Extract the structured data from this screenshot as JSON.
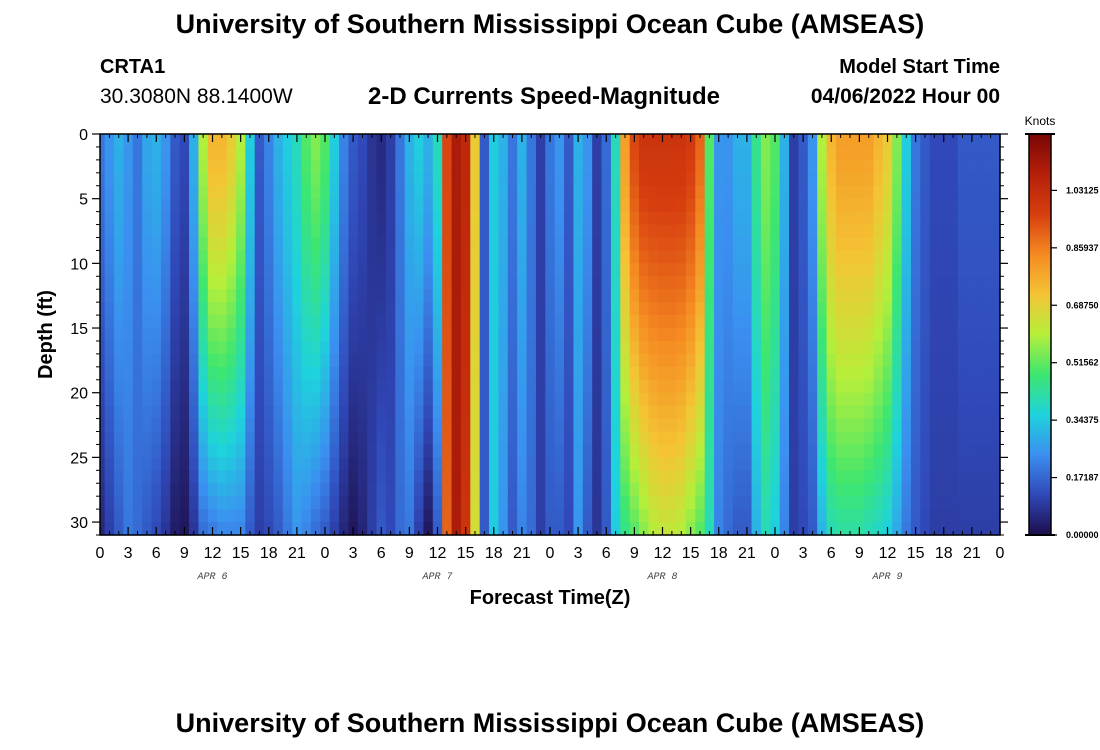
{
  "header": {
    "title": "University of Southern Mississippi Ocean Cube (AMSEAS)",
    "station": "CRTA1",
    "coords": "30.3080N  88.1400W",
    "subtitle": "2-D Currents Speed-Magnitude",
    "model_start_label": "Model Start Time",
    "model_start_value": "04/06/2022 Hour 00"
  },
  "footer": {
    "title": "University of Southern Mississippi Ocean Cube (AMSEAS)"
  },
  "chart_data": {
    "type": "heatmap",
    "title": "2-D Currents Speed-Magnitude",
    "xlabel": "Forecast Time(Z)",
    "ylabel": "Depth (ft)",
    "x_range_hours": [
      0,
      96
    ],
    "x_tick_labels": [
      "0",
      "3",
      "6",
      "9",
      "12",
      "15",
      "18",
      "21",
      "0",
      "3",
      "6",
      "9",
      "12",
      "15",
      "18",
      "21",
      "0",
      "3",
      "6",
      "9",
      "12",
      "15",
      "18",
      "21",
      "0",
      "3",
      "6",
      "9",
      "12",
      "15",
      "18",
      "21",
      "0"
    ],
    "date_labels": [
      {
        "label": "APR 6",
        "hour": 12
      },
      {
        "label": "APR 7",
        "hour": 36
      },
      {
        "label": "APR 8",
        "hour": 60
      },
      {
        "label": "APR 9",
        "hour": 84
      }
    ],
    "y_range_ft": [
      0,
      31
    ],
    "y_ticks": [
      0,
      5,
      10,
      15,
      20,
      25,
      30
    ],
    "colorbar": {
      "title": "Knots",
      "range": [
        0.0,
        1.2
      ],
      "ticks": [
        "0.00000",
        "0.17187",
        "0.34375",
        "0.51562",
        "0.68750",
        "0.85937",
        "1.03125"
      ],
      "tick_values": [
        0.0,
        0.17187,
        0.34375,
        0.51562,
        0.6875,
        0.85937,
        1.03125
      ],
      "colors": [
        "#1d0d4a",
        "#3048b8",
        "#3b8ff0",
        "#1ed3dc",
        "#3de670",
        "#b5ef3a",
        "#f4c434",
        "#f58a22",
        "#d73e0f",
        "#b5200a",
        "#7a0605"
      ]
    },
    "speed_columns_knots": [
      {
        "hour": 0,
        "surface": 0.2,
        "bottom": 0.05
      },
      {
        "hour": 1,
        "surface": 0.25,
        "bottom": 0.1
      },
      {
        "hour": 2,
        "surface": 0.3,
        "bottom": 0.15
      },
      {
        "hour": 3,
        "surface": 0.25,
        "bottom": 0.2
      },
      {
        "hour": 4,
        "surface": 0.2,
        "bottom": 0.18
      },
      {
        "hour": 5,
        "surface": 0.28,
        "bottom": 0.15
      },
      {
        "hour": 6,
        "surface": 0.3,
        "bottom": 0.12
      },
      {
        "hour": 7,
        "surface": 0.25,
        "bottom": 0.08
      },
      {
        "hour": 8,
        "surface": 0.15,
        "bottom": 0.03
      },
      {
        "hour": 9,
        "surface": 0.12,
        "bottom": 0.02
      },
      {
        "hour": 10,
        "surface": 0.3,
        "bottom": 0.08
      },
      {
        "hour": 11,
        "surface": 0.6,
        "bottom": 0.18
      },
      {
        "hour": 12,
        "surface": 0.75,
        "bottom": 0.2
      },
      {
        "hour": 13,
        "surface": 0.75,
        "bottom": 0.22
      },
      {
        "hour": 14,
        "surface": 0.7,
        "bottom": 0.22
      },
      {
        "hour": 15,
        "surface": 0.6,
        "bottom": 0.22
      },
      {
        "hour": 16,
        "surface": 0.35,
        "bottom": 0.15
      },
      {
        "hour": 17,
        "surface": 0.15,
        "bottom": 0.1
      },
      {
        "hour": 18,
        "surface": 0.22,
        "bottom": 0.12
      },
      {
        "hour": 19,
        "surface": 0.3,
        "bottom": 0.15
      },
      {
        "hour": 20,
        "surface": 0.35,
        "bottom": 0.2
      },
      {
        "hour": 21,
        "surface": 0.4,
        "bottom": 0.25
      },
      {
        "hour": 22,
        "surface": 0.5,
        "bottom": 0.22
      },
      {
        "hour": 23,
        "surface": 0.55,
        "bottom": 0.18
      },
      {
        "hour": 24,
        "surface": 0.5,
        "bottom": 0.15
      },
      {
        "hour": 25,
        "surface": 0.35,
        "bottom": 0.1
      },
      {
        "hour": 26,
        "surface": 0.22,
        "bottom": 0.05
      },
      {
        "hour": 27,
        "surface": 0.15,
        "bottom": 0.02
      },
      {
        "hour": 28,
        "surface": 0.12,
        "bottom": 0.05
      },
      {
        "hour": 29,
        "surface": 0.08,
        "bottom": 0.1
      },
      {
        "hour": 30,
        "surface": 0.06,
        "bottom": 0.15
      },
      {
        "hour": 31,
        "surface": 0.1,
        "bottom": 0.12
      },
      {
        "hour": 32,
        "surface": 0.2,
        "bottom": 0.18
      },
      {
        "hour": 33,
        "surface": 0.3,
        "bottom": 0.2
      },
      {
        "hour": 34,
        "surface": 0.35,
        "bottom": 0.1
      },
      {
        "hour": 35,
        "surface": 0.3,
        "bottom": 0.02
      },
      {
        "hour": 36,
        "surface": 0.4,
        "bottom": 0.15
      },
      {
        "hour": 37,
        "surface": 0.95,
        "bottom": 0.9
      },
      {
        "hour": 38,
        "surface": 1.1,
        "bottom": 1.1
      },
      {
        "hour": 39,
        "surface": 1.05,
        "bottom": 1.0
      },
      {
        "hour": 40,
        "surface": 0.7,
        "bottom": 0.65
      },
      {
        "hour": 41,
        "surface": 0.15,
        "bottom": 0.15
      },
      {
        "hour": 42,
        "surface": 0.35,
        "bottom": 0.35
      },
      {
        "hour": 43,
        "surface": 0.3,
        "bottom": 0.25
      },
      {
        "hour": 44,
        "surface": 0.2,
        "bottom": 0.15
      },
      {
        "hour": 45,
        "surface": 0.3,
        "bottom": 0.22
      },
      {
        "hour": 46,
        "surface": 0.2,
        "bottom": 0.18
      },
      {
        "hour": 47,
        "surface": 0.1,
        "bottom": 0.1
      },
      {
        "hour": 48,
        "surface": 0.2,
        "bottom": 0.15
      },
      {
        "hour": 49,
        "surface": 0.25,
        "bottom": 0.15
      },
      {
        "hour": 50,
        "surface": 0.15,
        "bottom": 0.12
      },
      {
        "hour": 51,
        "surface": 0.3,
        "bottom": 0.25
      },
      {
        "hour": 52,
        "surface": 0.25,
        "bottom": 0.15
      },
      {
        "hour": 53,
        "surface": 0.1,
        "bottom": 0.08
      },
      {
        "hour": 54,
        "surface": 0.18,
        "bottom": 0.15
      },
      {
        "hour": 55,
        "surface": 0.4,
        "bottom": 0.35
      },
      {
        "hour": 56,
        "surface": 0.8,
        "bottom": 0.45
      },
      {
        "hour": 57,
        "surface": 0.95,
        "bottom": 0.5
      },
      {
        "hour": 58,
        "surface": 1.0,
        "bottom": 0.55
      },
      {
        "hour": 59,
        "surface": 1.0,
        "bottom": 0.6
      },
      {
        "hour": 60,
        "surface": 1.0,
        "bottom": 0.62
      },
      {
        "hour": 61,
        "surface": 1.0,
        "bottom": 0.62
      },
      {
        "hour": 62,
        "surface": 1.0,
        "bottom": 0.6
      },
      {
        "hour": 63,
        "surface": 0.98,
        "bottom": 0.55
      },
      {
        "hour": 64,
        "surface": 0.9,
        "bottom": 0.5
      },
      {
        "hour": 65,
        "surface": 0.5,
        "bottom": 0.4
      },
      {
        "hour": 66,
        "surface": 0.25,
        "bottom": 0.22
      },
      {
        "hour": 67,
        "surface": 0.25,
        "bottom": 0.18
      },
      {
        "hour": 68,
        "surface": 0.3,
        "bottom": 0.15
      },
      {
        "hour": 69,
        "surface": 0.3,
        "bottom": 0.15
      },
      {
        "hour": 70,
        "surface": 0.45,
        "bottom": 0.3
      },
      {
        "hour": 71,
        "surface": 0.55,
        "bottom": 0.4
      },
      {
        "hour": 72,
        "surface": 0.5,
        "bottom": 0.35
      },
      {
        "hour": 73,
        "surface": 0.3,
        "bottom": 0.22
      },
      {
        "hour": 74,
        "surface": 0.1,
        "bottom": 0.1
      },
      {
        "hour": 75,
        "surface": 0.15,
        "bottom": 0.12
      },
      {
        "hour": 76,
        "surface": 0.25,
        "bottom": 0.15
      },
      {
        "hour": 77,
        "surface": 0.6,
        "bottom": 0.3
      },
      {
        "hour": 78,
        "surface": 0.75,
        "bottom": 0.4
      },
      {
        "hour": 79,
        "surface": 0.8,
        "bottom": 0.42
      },
      {
        "hour": 80,
        "surface": 0.8,
        "bottom": 0.42
      },
      {
        "hour": 81,
        "surface": 0.8,
        "bottom": 0.42
      },
      {
        "hour": 82,
        "surface": 0.8,
        "bottom": 0.4
      },
      {
        "hour": 83,
        "surface": 0.75,
        "bottom": 0.38
      },
      {
        "hour": 84,
        "surface": 0.7,
        "bottom": 0.35
      },
      {
        "hour": 85,
        "surface": 0.55,
        "bottom": 0.28
      },
      {
        "hour": 86,
        "surface": 0.35,
        "bottom": 0.2
      },
      {
        "hour": 87,
        "surface": 0.2,
        "bottom": 0.15
      },
      {
        "hour": 88,
        "surface": 0.15,
        "bottom": 0.12
      },
      {
        "hour": 89,
        "surface": 0.12,
        "bottom": 0.1
      },
      {
        "hour": 90,
        "surface": 0.12,
        "bottom": 0.1
      },
      {
        "hour": 91,
        "surface": 0.12,
        "bottom": 0.1
      },
      {
        "hour": 92,
        "surface": 0.15,
        "bottom": 0.1
      },
      {
        "hour": 93,
        "surface": 0.15,
        "bottom": 0.1
      },
      {
        "hour": 94,
        "surface": 0.15,
        "bottom": 0.1
      },
      {
        "hour": 95,
        "surface": 0.15,
        "bottom": 0.1
      },
      {
        "hour": 96,
        "surface": 0.15,
        "bottom": 0.1
      }
    ]
  }
}
